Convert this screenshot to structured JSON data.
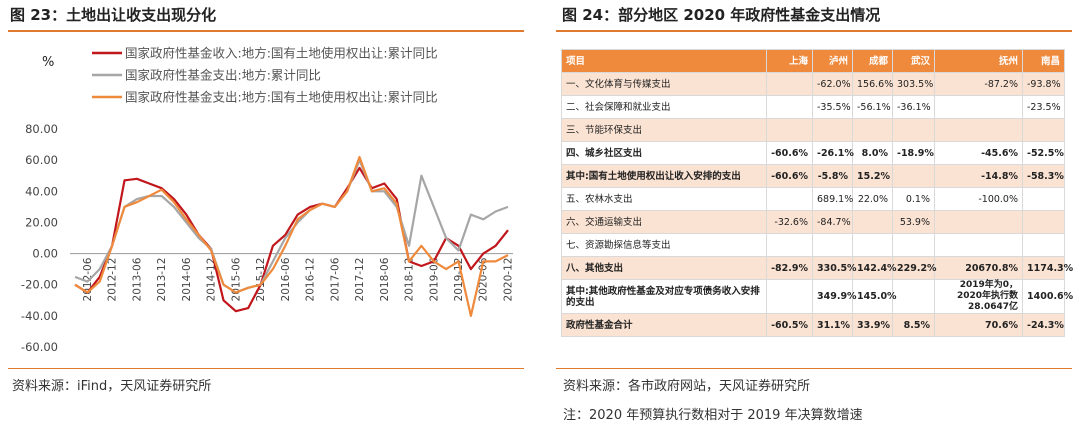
{
  "left": {
    "title": "图 23：土地出让收支出现分化",
    "source": "资料来源：iFind，天风证券研究所"
  },
  "right": {
    "title": "图 24：部分地区 2020 年政府性基金支出情况",
    "source": "资料来源：各市政府网站，天风证券研究所",
    "note": "注：2020 年预算执行数相对于 2019 年决算数增速",
    "table": {
      "header": [
        "项目",
        "上海",
        "泸州",
        "成都",
        "武汉",
        "抚州",
        "南昌"
      ],
      "rows": [
        {
          "cells": [
            "一、文化体育与传媒支出",
            "",
            "-62.0%",
            "156.6%",
            "303.5%",
            "-87.2%",
            "-93.8%"
          ],
          "style": "shade"
        },
        {
          "cells": [
            "二、社会保障和就业支出",
            "",
            "-35.5%",
            "-56.1%",
            "-36.1%",
            "",
            "-23.5%"
          ],
          "style": "white"
        },
        {
          "cells": [
            "三、节能环保支出",
            "",
            "",
            "",
            "",
            "",
            ""
          ],
          "style": "shade"
        },
        {
          "cells": [
            "四、城乡社区支出",
            "-60.6%",
            "-26.1%",
            "8.0%",
            "-18.9%",
            "-45.6%",
            "-52.5%"
          ],
          "style": "white bold"
        },
        {
          "cells": [
            "其中:国有土地使用权出让收入安排的支出",
            "-60.6%",
            "-5.8%",
            "15.2%",
            "",
            "-14.8%",
            "-58.3%"
          ],
          "style": "shade bold"
        },
        {
          "cells": [
            "五、农林水支出",
            "",
            "689.1%",
            "22.0%",
            "0.1%",
            "-100.0%",
            ""
          ],
          "style": "white"
        },
        {
          "cells": [
            "六、交通运输支出",
            "-32.6%",
            "-84.7%",
            "",
            "53.9%",
            "",
            ""
          ],
          "style": "shade"
        },
        {
          "cells": [
            "七、资源勘探信息等支出",
            "",
            "",
            "",
            "",
            "",
            ""
          ],
          "style": "white"
        },
        {
          "cells": [
            "八、其他支出",
            "-82.9%",
            "330.5%",
            "142.4%",
            "229.2%",
            "20670.8%",
            "1174.3%"
          ],
          "style": "shade bold"
        },
        {
          "cells": [
            "其中:其他政府性基金及对应专项债务收入安排的支出",
            "",
            "349.9%",
            "145.0%",
            "",
            "2019年为0，2020年执行数28.0647亿",
            "1400.6%"
          ],
          "style": "white bold"
        },
        {
          "cells": [
            "政府性基金合计",
            "-60.5%",
            "31.1%",
            "33.9%",
            "8.5%",
            "70.6%",
            "-24.3%"
          ],
          "style": "shade bold"
        }
      ]
    }
  },
  "chart_data": {
    "type": "line",
    "ylabel": "%",
    "ylim": [
      -60,
      80
    ],
    "yticks": [
      "80.00",
      "60.00",
      "40.00",
      "20.00",
      "0.00",
      "-20.00",
      "-40.00",
      "-60.00"
    ],
    "xticks": [
      "2012-06",
      "2012-12",
      "2013-06",
      "2013-12",
      "2014-06",
      "2014-12",
      "2015-06",
      "2015-12",
      "2016-06",
      "2016-12",
      "2017-06",
      "2017-12",
      "2018-06",
      "2018-12",
      "2019-06",
      "2019-12",
      "2020-06",
      "2020-12"
    ],
    "x": [
      "2012-03",
      "2012-06",
      "2012-09",
      "2012-12",
      "2013-03",
      "2013-06",
      "2013-09",
      "2013-12",
      "2014-03",
      "2014-06",
      "2014-09",
      "2014-12",
      "2015-03",
      "2015-06",
      "2015-09",
      "2015-12",
      "2016-03",
      "2016-06",
      "2016-09",
      "2016-12",
      "2017-03",
      "2017-06",
      "2017-09",
      "2017-12",
      "2018-03",
      "2018-06",
      "2018-09",
      "2018-12",
      "2019-03",
      "2019-06",
      "2019-09",
      "2019-12",
      "2020-03",
      "2020-06",
      "2020-09",
      "2020-12"
    ],
    "series": [
      {
        "name": "国家政府性基金收入:地方:国有土地使用权出让:累计同比",
        "color": "#c0161c",
        "values": [
          -20,
          -25,
          -15,
          5,
          47,
          48,
          45,
          42,
          35,
          25,
          12,
          3,
          -30,
          -37,
          -35,
          -20,
          5,
          12,
          25,
          30,
          32,
          30,
          42,
          55,
          42,
          45,
          35,
          -5,
          -8,
          -5,
          10,
          5,
          -10,
          0,
          5,
          15
        ]
      },
      {
        "name": "国家政府性基金支出:地方:累计同比",
        "color": "#a6a6a6",
        "values": [
          -15,
          -18,
          -10,
          5,
          30,
          35,
          37,
          37,
          30,
          20,
          10,
          3,
          -20,
          -25,
          -22,
          -20,
          -5,
          10,
          20,
          28,
          32,
          30,
          40,
          60,
          40,
          40,
          30,
          5,
          50,
          30,
          10,
          2,
          25,
          22,
          27,
          30
        ]
      },
      {
        "name": "国家政府性基金支出:地方:国有土地使用权出让:累计同比",
        "color": "#ef8a3c",
        "values": [
          -20,
          -25,
          -18,
          5,
          30,
          33,
          37,
          41,
          33,
          22,
          12,
          2,
          -20,
          -25,
          -22,
          -20,
          -10,
          5,
          22,
          28,
          32,
          30,
          40,
          62,
          40,
          42,
          32,
          -5,
          5,
          -5,
          -10,
          -5,
          -40,
          -5,
          -5,
          -1
        ]
      }
    ]
  }
}
